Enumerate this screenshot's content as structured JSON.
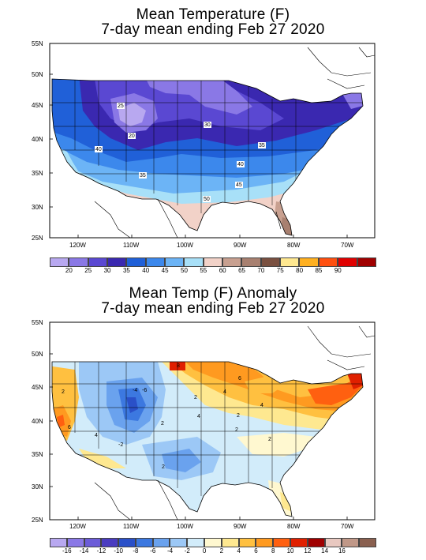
{
  "panel1": {
    "title_line1": "Mean Temperature (F)",
    "title_line2": "7-day mean ending Feb 27 2020",
    "legend_colors": [
      "#b8a8f0",
      "#8a78e6",
      "#5a48d2",
      "#3a28b0",
      "#2060d8",
      "#3c88ec",
      "#6cb4f6",
      "#a8e0f8",
      "#f2d2c8",
      "#c8a090",
      "#a88070",
      "#7a5040",
      "#ffe890",
      "#ffb020",
      "#ff5010",
      "#e00000",
      "#a00000"
    ],
    "legend_labels": [
      "20",
      "25",
      "30",
      "35",
      "40",
      "45",
      "50",
      "55",
      "60",
      "65",
      "70",
      "75",
      "80",
      "85",
      "90"
    ],
    "contour_labels": [
      "25",
      "20",
      "30",
      "35",
      "40",
      "40",
      "35",
      "45",
      "50"
    ]
  },
  "panel2": {
    "title_line1": "Mean Temp (F) Anomaly",
    "title_line2": "7-day mean ending Feb 27 2020",
    "legend_colors": [
      "#b8a8f0",
      "#8a78e6",
      "#6c5cd8",
      "#4a3cc0",
      "#2a50c8",
      "#3c78e0",
      "#6aa2ee",
      "#9cc8f6",
      "#d2ecfa",
      "#fff8d0",
      "#fee890",
      "#ffc040",
      "#ff9a20",
      "#ff6010",
      "#e02000",
      "#a00000",
      "#e8c8c0",
      "#c09888",
      "#8a6050"
    ],
    "legend_labels": [
      "-16",
      "-14",
      "-12",
      "-10",
      "-8",
      "-6",
      "-4",
      "-2",
      "0",
      "2",
      "4",
      "6",
      "8",
      "10",
      "12",
      "14",
      "16"
    ],
    "contour_labels": [
      "6",
      "2",
      "4",
      "2",
      "6",
      "4",
      "-4",
      "-6",
      "-2",
      "2",
      "4",
      "2",
      "2",
      "4",
      "2",
      "2",
      "8"
    ]
  },
  "axes": {
    "y_labels": [
      "55N",
      "50N",
      "45N",
      "40N",
      "35N",
      "30N",
      "25N"
    ],
    "x_labels": [
      "120W",
      "110W",
      "100W",
      "90W",
      "80W",
      "70W"
    ]
  }
}
